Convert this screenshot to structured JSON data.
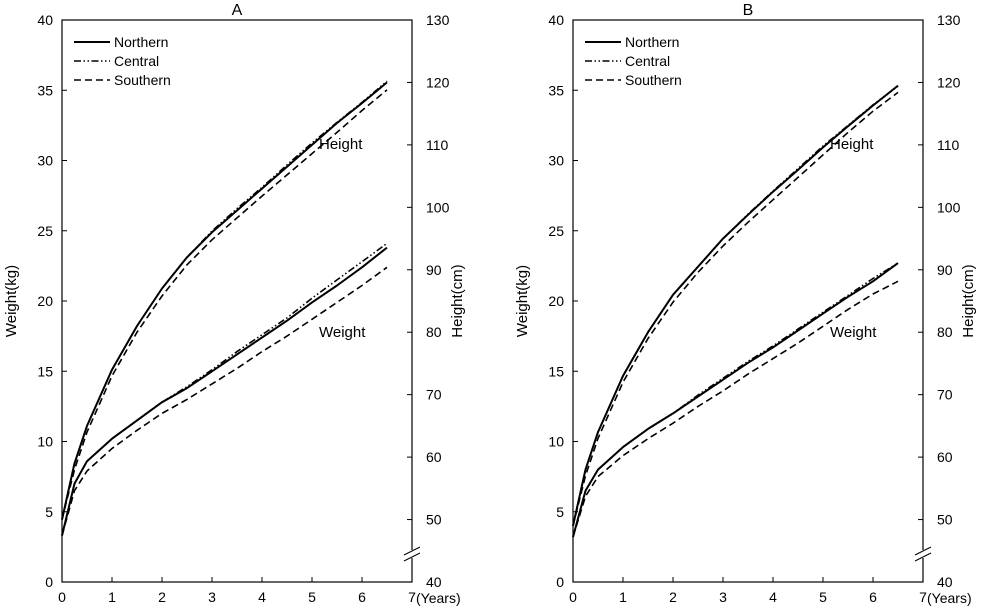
{
  "chart_data": [
    {
      "type": "line",
      "title": "A",
      "xlabel": "(Years)",
      "ylabel_left": "Weight(kg)",
      "ylabel_right": "Height(cm)",
      "xlim": [
        0,
        7
      ],
      "ylim_left": [
        0,
        40
      ],
      "ylim_right": [
        40,
        130
      ],
      "x_ticks": [
        "0",
        "1",
        "2",
        "3",
        "4",
        "5",
        "6",
        "7"
      ],
      "y_left_ticks": [
        "0",
        "5",
        "10",
        "15",
        "20",
        "25",
        "30",
        "35",
        "40"
      ],
      "y_right_ticks": [
        "40",
        "50",
        "60",
        "70",
        "80",
        "90",
        "100",
        "110",
        "120",
        "130"
      ],
      "legend": [
        "Northern",
        "Central",
        "Southern"
      ],
      "legend_position": "top-left",
      "annotations": {
        "height": "Height",
        "weight": "Weight"
      },
      "x": [
        0,
        0.25,
        0.5,
        1,
        1.5,
        2,
        2.5,
        3,
        3.5,
        4,
        4.5,
        5,
        5.5,
        6,
        6.5
      ],
      "series": [
        {
          "name": "Northern",
          "measure": "Weight",
          "axis": "left",
          "values": [
            3.3,
            7.0,
            8.6,
            10.2,
            11.5,
            12.8,
            13.8,
            15.0,
            16.2,
            17.4,
            18.6,
            19.9,
            21.1,
            22.4,
            23.8
          ]
        },
        {
          "name": "Central",
          "measure": "Weight",
          "axis": "left",
          "values": [
            3.3,
            7.0,
            8.6,
            10.2,
            11.5,
            12.8,
            13.9,
            15.1,
            16.4,
            17.6,
            18.8,
            20.2,
            21.5,
            22.8,
            24.1
          ]
        },
        {
          "name": "Southern",
          "measure": "Weight",
          "axis": "left",
          "values": [
            3.3,
            6.5,
            7.9,
            9.5,
            10.8,
            12.0,
            13.0,
            14.1,
            15.2,
            16.4,
            17.5,
            18.7,
            19.9,
            21.1,
            22.4
          ]
        },
        {
          "name": "Northern",
          "measure": "Height",
          "axis": "right",
          "values": [
            50,
            59,
            65,
            74,
            81,
            87,
            92,
            96,
            99.5,
            103,
            106.5,
            110,
            113.5,
            116.7,
            120
          ]
        },
        {
          "name": "Central",
          "measure": "Height",
          "axis": "right",
          "values": [
            50,
            59,
            65,
            74,
            81,
            87,
            92,
            96.2,
            99.8,
            103.2,
            106.8,
            110.3,
            113.6,
            116.8,
            120.2
          ]
        },
        {
          "name": "Southern",
          "measure": "Height",
          "axis": "right",
          "values": [
            50,
            58,
            64,
            73,
            80,
            85.8,
            90.8,
            94.8,
            98.3,
            101.8,
            105.2,
            108.6,
            112,
            115.5,
            118.8
          ]
        }
      ]
    },
    {
      "type": "line",
      "title": "B",
      "xlabel": "(Years)",
      "ylabel_left": "Weight(kg)",
      "ylabel_right": "Height(cm)",
      "xlim": [
        0,
        7
      ],
      "ylim_left": [
        0,
        40
      ],
      "ylim_right": [
        40,
        130
      ],
      "x_ticks": [
        "0",
        "1",
        "2",
        "3",
        "4",
        "5",
        "6",
        "7"
      ],
      "y_left_ticks": [
        "0",
        "5",
        "10",
        "15",
        "20",
        "25",
        "30",
        "35",
        "40"
      ],
      "y_right_ticks": [
        "40",
        "50",
        "60",
        "70",
        "80",
        "90",
        "100",
        "110",
        "120",
        "130"
      ],
      "legend": [
        "Northern",
        "Central",
        "Southern"
      ],
      "legend_position": "top-left",
      "annotations": {
        "height": "Height",
        "weight": "Weight"
      },
      "x": [
        0,
        0.25,
        0.5,
        1,
        1.5,
        2,
        2.5,
        3,
        3.5,
        4,
        4.5,
        5,
        5.5,
        6,
        6.5
      ],
      "series": [
        {
          "name": "Northern",
          "measure": "Weight",
          "axis": "left",
          "values": [
            3.2,
            6.5,
            8.0,
            9.6,
            10.9,
            12.0,
            13.2,
            14.4,
            15.6,
            16.7,
            17.9,
            19.1,
            20.3,
            21.4,
            22.7
          ]
        },
        {
          "name": "Central",
          "measure": "Weight",
          "axis": "left",
          "values": [
            3.2,
            6.5,
            8.0,
            9.6,
            10.9,
            12.0,
            13.3,
            14.5,
            15.7,
            16.8,
            18.0,
            19.2,
            20.4,
            21.6,
            22.7
          ]
        },
        {
          "name": "Southern",
          "measure": "Weight",
          "axis": "left",
          "values": [
            3.2,
            6.1,
            7.5,
            9.0,
            10.2,
            11.3,
            12.5,
            13.6,
            14.8,
            15.9,
            17.0,
            18.2,
            19.4,
            20.5,
            21.4
          ]
        },
        {
          "name": "Northern",
          "measure": "Height",
          "axis": "right",
          "values": [
            49,
            58,
            64,
            73,
            80,
            86,
            90.5,
            95,
            98.8,
            102.5,
            106,
            109.6,
            113,
            116.3,
            119.5
          ]
        },
        {
          "name": "Central",
          "measure": "Height",
          "axis": "right",
          "values": [
            49,
            58,
            64,
            73,
            80,
            86,
            90.5,
            95,
            98.9,
            102.6,
            106.2,
            109.8,
            113.1,
            116.4,
            119.4
          ]
        },
        {
          "name": "Southern",
          "measure": "Height",
          "axis": "right",
          "values": [
            49,
            57,
            63,
            72,
            79,
            84.8,
            89.6,
            93.8,
            97.6,
            101.2,
            104.8,
            108.4,
            112,
            115.4,
            118.4
          ]
        }
      ]
    }
  ]
}
